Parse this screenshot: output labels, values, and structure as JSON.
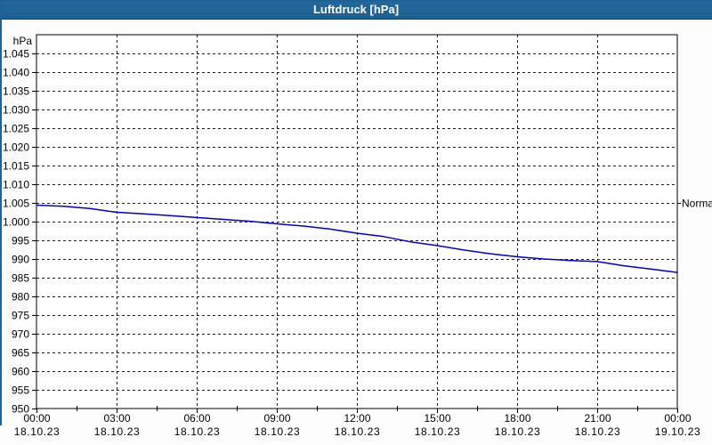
{
  "window": {
    "title": "Luftdruck [hPa]"
  },
  "colors": {
    "titlebar_background": "#1e6396",
    "titlebar_text": "#ffffff",
    "window_border": "#1e6396",
    "plot_border": "#000000",
    "gridline": "#1c1c1c",
    "series_line": "#0000cc",
    "background": "#fcfdfc",
    "plot_background": "#ffffff",
    "label_text": "#000000"
  },
  "chart_data": {
    "type": "line",
    "title": "Luftdruck [hPa]",
    "ylabel_unit": "hPa",
    "grid": "dashed",
    "legend": "none",
    "ylim": [
      950,
      1050
    ],
    "xlim_hours": [
      0,
      24
    ],
    "y_ticks": [
      {
        "value": 1045,
        "label": "1.045"
      },
      {
        "value": 1040,
        "label": "1.040"
      },
      {
        "value": 1035,
        "label": "1.035"
      },
      {
        "value": 1030,
        "label": "1.030"
      },
      {
        "value": 1025,
        "label": "1.025"
      },
      {
        "value": 1020,
        "label": "1.020"
      },
      {
        "value": 1015,
        "label": "1.015"
      },
      {
        "value": 1010,
        "label": "1.010"
      },
      {
        "value": 1005,
        "label": "1.005"
      },
      {
        "value": 1000,
        "label": "1.000"
      },
      {
        "value": 995,
        "label": "995"
      },
      {
        "value": 990,
        "label": "990"
      },
      {
        "value": 985,
        "label": "985"
      },
      {
        "value": 980,
        "label": "980"
      },
      {
        "value": 975,
        "label": "975"
      },
      {
        "value": 970,
        "label": "970"
      },
      {
        "value": 965,
        "label": "965"
      },
      {
        "value": 960,
        "label": "960"
      },
      {
        "value": 955,
        "label": "955"
      },
      {
        "value": 950,
        "label": "950"
      }
    ],
    "x_ticks": [
      {
        "hour": 0,
        "time": "00:00",
        "date": "18.10.23"
      },
      {
        "hour": 3,
        "time": "03:00",
        "date": "18.10.23"
      },
      {
        "hour": 6,
        "time": "06:00",
        "date": "18.10.23"
      },
      {
        "hour": 9,
        "time": "09:00",
        "date": "18.10.23"
      },
      {
        "hour": 12,
        "time": "12:00",
        "date": "18.10.23"
      },
      {
        "hour": 15,
        "time": "15:00",
        "date": "18.10.23"
      },
      {
        "hour": 18,
        "time": "18:00",
        "date": "18.10.23"
      },
      {
        "hour": 21,
        "time": "21:00",
        "date": "18.10.23"
      },
      {
        "hour": 24,
        "time": "00:00",
        "date": "19.10.23"
      }
    ],
    "x_minor_tick_hours": [
      1.5,
      4.5,
      7.5,
      10.5,
      13.5,
      16.5,
      19.5,
      22.5
    ],
    "series": [
      {
        "name": "Luftdruck",
        "color": "#0000cc",
        "x_hours": [
          0,
          1,
          2,
          3,
          4,
          5,
          6,
          7,
          8,
          9,
          10,
          11,
          12,
          13,
          14,
          15,
          16,
          17,
          18,
          19,
          20,
          21,
          22,
          23,
          24
        ],
        "values": [
          1004.4,
          1004.1,
          1003.5,
          1002.5,
          1002.1,
          1001.6,
          1001.1,
          1000.6,
          1000.1,
          999.4,
          998.8,
          998.0,
          996.9,
          996.0,
          994.6,
          993.6,
          992.4,
          991.4,
          990.6,
          990.0,
          989.6,
          989.3,
          988.2,
          987.3,
          986.4
        ]
      }
    ],
    "annotations": [
      {
        "label": "Normal",
        "value": 1005,
        "side": "right"
      }
    ]
  }
}
